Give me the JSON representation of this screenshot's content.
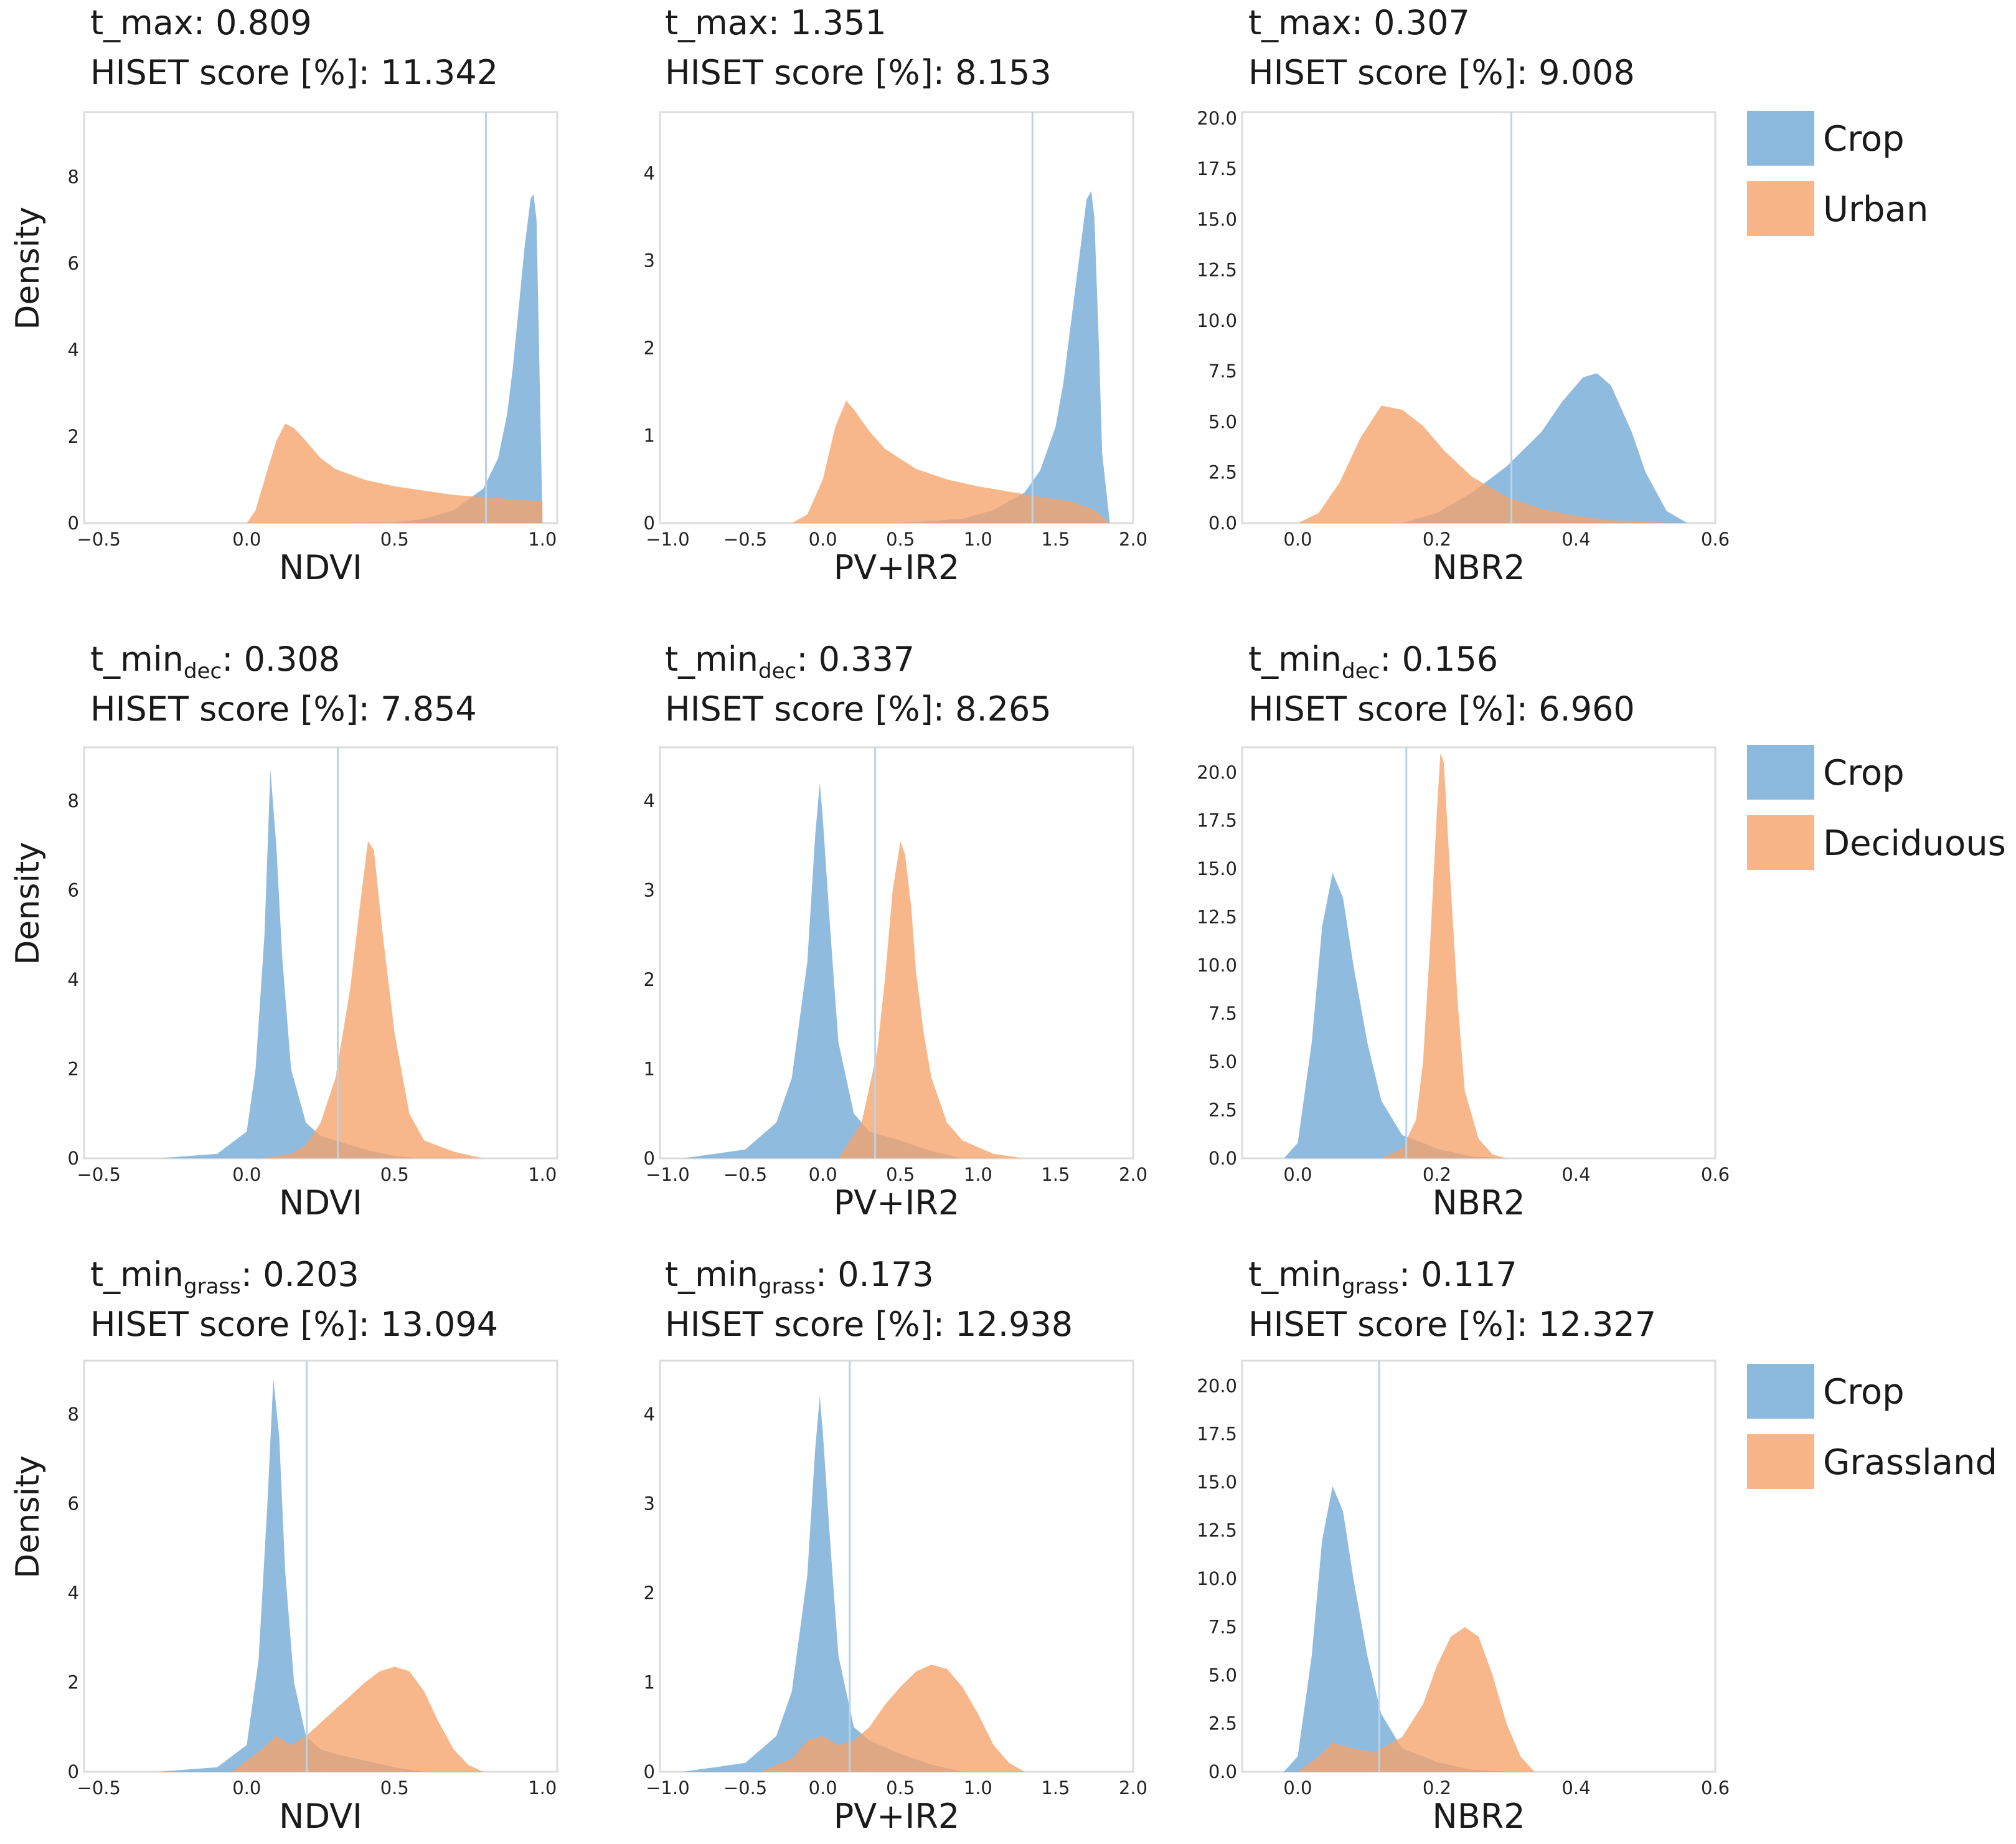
{
  "colors": {
    "crop": "#6fa8d6",
    "other": "#f6a36a",
    "threshold": "#b8d3ea",
    "frame": "#dcdcdc"
  },
  "chart_data": [
    {
      "type": "area",
      "row": 0,
      "col": 0,
      "title_prefix": "t_max",
      "title_sub": "",
      "title_value": ": 0.809",
      "score_text": "HISET score [%]: 11.342",
      "xlabel": "NDVI",
      "ylabel": "Density",
      "threshold": 0.809,
      "xlim": [
        -0.55,
        1.05
      ],
      "ylim": [
        0,
        9.5
      ],
      "xticks": [
        "-0.5",
        "0.0",
        "0.5",
        "1.0"
      ],
      "yticks": [
        "0",
        "2",
        "4",
        "6",
        "8"
      ],
      "series": [
        {
          "name": "Crop",
          "x": [
            0.3,
            0.5,
            0.6,
            0.7,
            0.8,
            0.85,
            0.88,
            0.9,
            0.92,
            0.94,
            0.96,
            0.97,
            0.98,
            1.0
          ],
          "y": [
            0,
            0.02,
            0.1,
            0.3,
            0.8,
            1.5,
            2.5,
            3.6,
            5.0,
            6.4,
            7.5,
            7.6,
            7.0,
            0
          ]
        },
        {
          "name": "Urban",
          "x": [
            0.0,
            0.03,
            0.06,
            0.1,
            0.13,
            0.16,
            0.2,
            0.25,
            0.3,
            0.4,
            0.5,
            0.6,
            0.7,
            0.8,
            0.9,
            1.0
          ],
          "y": [
            0,
            0.3,
            1.0,
            1.9,
            2.3,
            2.2,
            1.9,
            1.5,
            1.25,
            1.0,
            0.85,
            0.75,
            0.65,
            0.6,
            0.55,
            0.5
          ]
        }
      ]
    },
    {
      "type": "area",
      "row": 0,
      "col": 1,
      "title_prefix": "t_max",
      "title_sub": "",
      "title_value": ": 1.351",
      "score_text": "HISET score [%]: 8.153",
      "xlabel": "PV+IR2",
      "ylabel": "",
      "threshold": 1.351,
      "xlim": [
        -1.05,
        2.0
      ],
      "ylim": [
        0,
        4.7
      ],
      "xticks": [
        "-1.0",
        "-0.5",
        "0.0",
        "0.5",
        "1.0",
        "1.5",
        "2.0"
      ],
      "yticks": [
        "0",
        "1",
        "2",
        "3",
        "4"
      ],
      "series": [
        {
          "name": "Crop",
          "x": [
            0.5,
            0.9,
            1.1,
            1.3,
            1.4,
            1.5,
            1.55,
            1.6,
            1.65,
            1.7,
            1.73,
            1.75,
            1.78,
            1.8,
            1.85
          ],
          "y": [
            0,
            0.05,
            0.15,
            0.35,
            0.6,
            1.1,
            1.6,
            2.3,
            3.0,
            3.7,
            3.8,
            3.5,
            2.0,
            0.8,
            0
          ]
        },
        {
          "name": "Urban",
          "x": [
            -0.2,
            -0.1,
            0.0,
            0.08,
            0.15,
            0.2,
            0.3,
            0.4,
            0.6,
            0.8,
            1.0,
            1.2,
            1.4,
            1.6,
            1.75,
            1.85
          ],
          "y": [
            0,
            0.1,
            0.5,
            1.1,
            1.4,
            1.3,
            1.05,
            0.85,
            0.62,
            0.5,
            0.42,
            0.36,
            0.3,
            0.25,
            0.15,
            0
          ]
        }
      ]
    },
    {
      "type": "area",
      "row": 0,
      "col": 2,
      "title_prefix": "t_max",
      "title_sub": "",
      "title_value": ": 0.307",
      "score_text": "HISET score [%]: 9.008",
      "xlabel": "NBR2",
      "ylabel": "",
      "threshold": 0.307,
      "xlim": [
        -0.08,
        0.6
      ],
      "ylim": [
        0,
        20.3
      ],
      "xticks": [
        "0.0",
        "0.2",
        "0.4",
        "0.6"
      ],
      "yticks": [
        "0.0",
        "2.5",
        "5.0",
        "7.5",
        "10.0",
        "12.5",
        "15.0",
        "17.5",
        "20.0"
      ],
      "series": [
        {
          "name": "Crop",
          "x": [
            0.15,
            0.2,
            0.25,
            0.3,
            0.35,
            0.38,
            0.41,
            0.43,
            0.45,
            0.48,
            0.5,
            0.53,
            0.56
          ],
          "y": [
            0,
            0.5,
            1.5,
            2.8,
            4.5,
            6.0,
            7.2,
            7.4,
            6.8,
            4.5,
            2.5,
            0.6,
            0
          ]
        },
        {
          "name": "Urban",
          "x": [
            0.0,
            0.03,
            0.06,
            0.09,
            0.12,
            0.15,
            0.18,
            0.21,
            0.25,
            0.3,
            0.35,
            0.4,
            0.45,
            0.5,
            0.55
          ],
          "y": [
            0,
            0.5,
            2.0,
            4.2,
            5.8,
            5.6,
            4.8,
            3.6,
            2.3,
            1.3,
            0.7,
            0.35,
            0.15,
            0.05,
            0
          ]
        }
      ]
    },
    {
      "type": "area",
      "row": 1,
      "col": 0,
      "title_prefix": "t_min",
      "title_sub": "dec",
      "title_value": ": 0.308",
      "score_text": "HISET score [%]: 7.854",
      "xlabel": "NDVI",
      "ylabel": "Density",
      "threshold": 0.308,
      "xlim": [
        -0.55,
        1.05
      ],
      "ylim": [
        0,
        9.2
      ],
      "xticks": [
        "-0.5",
        "0.0",
        "0.5",
        "1.0"
      ],
      "yticks": [
        "0",
        "2",
        "4",
        "6",
        "8"
      ],
      "series": [
        {
          "name": "Crop",
          "x": [
            -0.3,
            -0.1,
            0.0,
            0.03,
            0.06,
            0.08,
            0.1,
            0.12,
            0.15,
            0.2,
            0.25,
            0.3,
            0.4,
            0.5,
            0.6
          ],
          "y": [
            0,
            0.1,
            0.6,
            2.0,
            5.0,
            8.7,
            7.0,
            4.5,
            2.0,
            0.8,
            0.5,
            0.4,
            0.2,
            0.05,
            0
          ]
        },
        {
          "name": "Deciduous",
          "x": [
            0.05,
            0.15,
            0.2,
            0.25,
            0.3,
            0.35,
            0.38,
            0.41,
            0.43,
            0.46,
            0.5,
            0.55,
            0.6,
            0.7,
            0.8
          ],
          "y": [
            0,
            0.1,
            0.3,
            0.8,
            1.8,
            3.8,
            5.5,
            7.1,
            6.9,
            5.0,
            2.8,
            1.0,
            0.4,
            0.15,
            0
          ]
        }
      ]
    },
    {
      "type": "area",
      "row": 1,
      "col": 1,
      "title_prefix": "t_min",
      "title_sub": "dec",
      "title_value": ": 0.337",
      "score_text": "HISET score [%]: 8.265",
      "xlabel": "PV+IR2",
      "ylabel": "",
      "threshold": 0.337,
      "xlim": [
        -1.05,
        2.0
      ],
      "ylim": [
        0,
        4.6
      ],
      "xticks": [
        "-1.0",
        "-0.5",
        "0.0",
        "0.5",
        "1.0",
        "1.5",
        "2.0"
      ],
      "yticks": [
        "0",
        "1",
        "2",
        "3",
        "4"
      ],
      "series": [
        {
          "name": "Crop",
          "x": [
            -0.9,
            -0.5,
            -0.3,
            -0.2,
            -0.1,
            -0.05,
            -0.02,
            0.0,
            0.05,
            0.1,
            0.2,
            0.3,
            0.5,
            0.7,
            0.9
          ],
          "y": [
            0,
            0.1,
            0.4,
            0.9,
            2.2,
            3.6,
            4.2,
            3.8,
            2.5,
            1.3,
            0.5,
            0.3,
            0.2,
            0.08,
            0
          ]
        },
        {
          "name": "Deciduous",
          "x": [
            0.1,
            0.25,
            0.35,
            0.4,
            0.45,
            0.5,
            0.53,
            0.57,
            0.6,
            0.65,
            0.7,
            0.8,
            0.9,
            1.1,
            1.3
          ],
          "y": [
            0,
            0.4,
            1.2,
            2.0,
            3.0,
            3.55,
            3.4,
            2.8,
            2.1,
            1.4,
            0.9,
            0.4,
            0.2,
            0.05,
            0
          ]
        }
      ]
    },
    {
      "type": "area",
      "row": 1,
      "col": 2,
      "title_prefix": "t_min",
      "title_sub": "dec",
      "title_value": ": 0.156",
      "score_text": "HISET score [%]: 6.960",
      "xlabel": "NBR2",
      "ylabel": "",
      "threshold": 0.156,
      "xlim": [
        -0.08,
        0.6
      ],
      "ylim": [
        0,
        21.3
      ],
      "xticks": [
        "0.0",
        "0.2",
        "0.4",
        "0.6"
      ],
      "yticks": [
        "0.0",
        "2.5",
        "5.0",
        "7.5",
        "10.0",
        "12.5",
        "15.0",
        "17.5",
        "20.0"
      ],
      "series": [
        {
          "name": "Crop",
          "x": [
            -0.02,
            0.0,
            0.02,
            0.035,
            0.05,
            0.065,
            0.08,
            0.1,
            0.12,
            0.15,
            0.18,
            0.2,
            0.25,
            0.3
          ],
          "y": [
            0,
            0.8,
            6.0,
            12.0,
            14.8,
            13.5,
            10.0,
            6.0,
            3.0,
            1.2,
            0.8,
            0.5,
            0.1,
            0
          ]
        },
        {
          "name": "Deciduous",
          "x": [
            0.12,
            0.15,
            0.17,
            0.18,
            0.19,
            0.2,
            0.205,
            0.21,
            0.22,
            0.23,
            0.24,
            0.26,
            0.28,
            0.3
          ],
          "y": [
            0,
            0.5,
            2.0,
            5.0,
            11.0,
            18.0,
            21.0,
            20.5,
            14.0,
            8.0,
            3.5,
            1.0,
            0.2,
            0
          ]
        }
      ]
    },
    {
      "type": "area",
      "row": 2,
      "col": 0,
      "title_prefix": "t_min",
      "title_sub": "grass",
      "title_value": ": 0.203",
      "score_text": "HISET score [%]: 13.094",
      "xlabel": "NDVI",
      "ylabel": "Density",
      "threshold": 0.203,
      "xlim": [
        -0.55,
        1.05
      ],
      "ylim": [
        0,
        9.2
      ],
      "xticks": [
        "-0.5",
        "0.0",
        "0.5",
        "1.0"
      ],
      "yticks": [
        "0",
        "2",
        "4",
        "6",
        "8"
      ],
      "series": [
        {
          "name": "Crop",
          "x": [
            -0.3,
            -0.1,
            0.0,
            0.04,
            0.07,
            0.09,
            0.11,
            0.13,
            0.16,
            0.2,
            0.25,
            0.3,
            0.4,
            0.5,
            0.6
          ],
          "y": [
            0,
            0.1,
            0.6,
            2.5,
            6.0,
            8.8,
            7.5,
            4.5,
            2.0,
            0.8,
            0.5,
            0.4,
            0.25,
            0.1,
            0
          ]
        },
        {
          "name": "Grassland",
          "x": [
            -0.05,
            0.05,
            0.1,
            0.15,
            0.2,
            0.3,
            0.4,
            0.45,
            0.5,
            0.55,
            0.6,
            0.65,
            0.7,
            0.75,
            0.8
          ],
          "y": [
            0,
            0.5,
            0.8,
            0.6,
            0.8,
            1.4,
            2.0,
            2.25,
            2.35,
            2.25,
            1.8,
            1.1,
            0.5,
            0.15,
            0
          ]
        }
      ]
    },
    {
      "type": "area",
      "row": 2,
      "col": 1,
      "title_prefix": "t_min",
      "title_sub": "grass",
      "title_value": ": 0.173",
      "score_text": "HISET score [%]: 12.938",
      "xlabel": "PV+IR2",
      "ylabel": "",
      "threshold": 0.173,
      "xlim": [
        -1.05,
        2.0
      ],
      "ylim": [
        0,
        4.6
      ],
      "xticks": [
        "-1.0",
        "-0.5",
        "0.0",
        "0.5",
        "1.0",
        "1.5",
        "2.0"
      ],
      "yticks": [
        "0",
        "1",
        "2",
        "3",
        "4"
      ],
      "series": [
        {
          "name": "Crop",
          "x": [
            -0.9,
            -0.5,
            -0.3,
            -0.2,
            -0.1,
            -0.05,
            -0.02,
            0.0,
            0.05,
            0.1,
            0.2,
            0.3,
            0.5,
            0.7,
            0.9
          ],
          "y": [
            0,
            0.1,
            0.4,
            0.9,
            2.2,
            3.6,
            4.2,
            3.8,
            2.5,
            1.3,
            0.5,
            0.35,
            0.2,
            0.08,
            0
          ]
        },
        {
          "name": "Grassland",
          "x": [
            -0.4,
            -0.2,
            -0.1,
            0.0,
            0.1,
            0.2,
            0.3,
            0.4,
            0.5,
            0.6,
            0.7,
            0.8,
            0.9,
            1.0,
            1.1,
            1.2,
            1.3
          ],
          "y": [
            0,
            0.15,
            0.35,
            0.4,
            0.3,
            0.35,
            0.5,
            0.75,
            0.95,
            1.12,
            1.2,
            1.15,
            0.95,
            0.65,
            0.3,
            0.1,
            0
          ]
        }
      ]
    },
    {
      "type": "area",
      "row": 2,
      "col": 2,
      "title_prefix": "t_min",
      "title_sub": "grass",
      "title_value": ": 0.117",
      "score_text": "HISET score [%]: 12.327",
      "xlabel": "NBR2",
      "ylabel": "",
      "threshold": 0.117,
      "xlim": [
        -0.08,
        0.6
      ],
      "ylim": [
        0,
        21.3
      ],
      "xticks": [
        "0.0",
        "0.2",
        "0.4",
        "0.6"
      ],
      "yticks": [
        "0.0",
        "2.5",
        "5.0",
        "7.5",
        "10.0",
        "12.5",
        "15.0",
        "17.5",
        "20.0"
      ],
      "series": [
        {
          "name": "Crop",
          "x": [
            -0.02,
            0.0,
            0.02,
            0.035,
            0.05,
            0.065,
            0.08,
            0.1,
            0.12,
            0.15,
            0.18,
            0.2,
            0.25,
            0.3
          ],
          "y": [
            0,
            0.8,
            6.0,
            12.0,
            14.8,
            13.5,
            10.0,
            6.0,
            3.0,
            1.2,
            0.8,
            0.5,
            0.1,
            0
          ]
        },
        {
          "name": "Grassland",
          "x": [
            0.0,
            0.03,
            0.05,
            0.08,
            0.11,
            0.15,
            0.18,
            0.2,
            0.22,
            0.24,
            0.26,
            0.28,
            0.3,
            0.32,
            0.34
          ],
          "y": [
            0,
            0.8,
            1.5,
            1.2,
            1.0,
            1.8,
            3.5,
            5.5,
            7.0,
            7.5,
            7.0,
            5.0,
            2.5,
            0.8,
            0
          ]
        }
      ]
    }
  ],
  "legends": [
    {
      "row": 0,
      "items": [
        "Crop",
        "Urban"
      ]
    },
    {
      "row": 1,
      "items": [
        "Crop",
        "Deciduous"
      ]
    },
    {
      "row": 2,
      "items": [
        "Crop",
        "Grassland"
      ]
    }
  ]
}
